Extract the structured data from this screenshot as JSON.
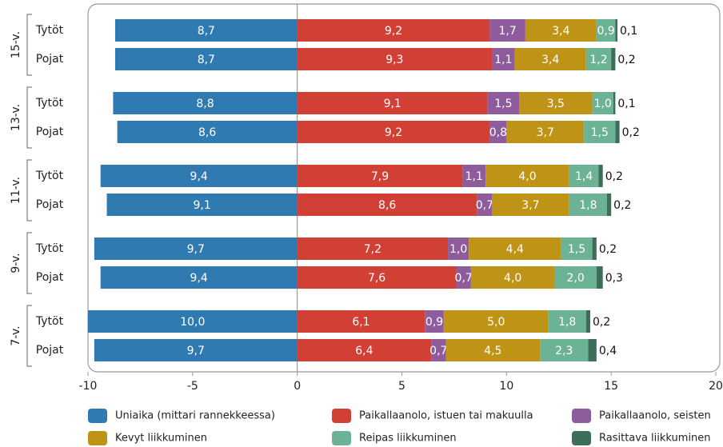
{
  "chart_data": {
    "type": "diverging-stacked-bar",
    "groups": [
      "15-v.",
      "13-v.",
      "11-v.",
      "9-v.",
      "7-v."
    ],
    "categories": [
      "Tytöt",
      "Pojat",
      "Tytöt",
      "Pojat",
      "Tytöt",
      "Pojat",
      "Tytöt",
      "Pojat",
      "Tytöt",
      "Pojat"
    ],
    "series": [
      {
        "name": "Uniaika (mittari rannekkeessa)",
        "color": "#2f7bb1",
        "values": [
          -8.7,
          -8.7,
          -8.8,
          -8.6,
          -9.4,
          -9.1,
          -9.7,
          -9.4,
          -10.0,
          -9.7
        ],
        "value_labels": [
          "8,7",
          "8,7",
          "8,8",
          "8,6",
          "9,4",
          "9,1",
          "9,7",
          "9,4",
          "10,0",
          "9,7"
        ]
      },
      {
        "name": "Paikallaanolo, istuen tai makuulla",
        "color": "#d23f35",
        "values": [
          9.2,
          9.3,
          9.1,
          9.2,
          7.9,
          8.6,
          7.2,
          7.6,
          6.1,
          6.4
        ],
        "value_labels": [
          "9,2",
          "9,3",
          "9,1",
          "9,2",
          "7,9",
          "8,6",
          "7,2",
          "7,6",
          "6,1",
          "6,4"
        ]
      },
      {
        "name": "Paikallaanolo, seisten",
        "color": "#8e5c9c",
        "values": [
          1.7,
          1.1,
          1.5,
          0.8,
          1.1,
          0.7,
          1.0,
          0.7,
          0.9,
          0.7
        ],
        "value_labels": [
          "1,7",
          "1,1",
          "1,5",
          "0,8",
          "1,1",
          "0,7",
          "1,0",
          "0,7",
          "0,9",
          "0,7"
        ]
      },
      {
        "name": "Kevyt liikkuminen",
        "color": "#bf9416",
        "values": [
          3.4,
          3.4,
          3.5,
          3.7,
          4.0,
          3.7,
          4.4,
          4.0,
          5.0,
          4.5
        ],
        "value_labels": [
          "3,4",
          "3,4",
          "3,5",
          "3,7",
          "4,0",
          "3,7",
          "4,4",
          "4,0",
          "5,0",
          "4,5"
        ]
      },
      {
        "name": "Reipas liikkuminen",
        "color": "#6bb394",
        "values": [
          0.9,
          1.2,
          1.0,
          1.5,
          1.4,
          1.8,
          1.5,
          2.0,
          1.8,
          2.3
        ],
        "value_labels": [
          "0,9",
          "1,2",
          "1,0",
          "1,5",
          "1,4",
          "1,8",
          "1,5",
          "2,0",
          "1,8",
          "2,3"
        ]
      },
      {
        "name": "Rasittava liikkuminen",
        "color": "#3c6e5a",
        "values": [
          0.1,
          0.2,
          0.1,
          0.2,
          0.2,
          0.2,
          0.2,
          0.3,
          0.2,
          0.4
        ],
        "value_labels": [
          "0,1",
          "0,2",
          "0,1",
          "0,2",
          "0,2",
          "0,2",
          "0,2",
          "0,3",
          "0,2",
          "0,4"
        ]
      }
    ],
    "xlim": [
      -10,
      20
    ],
    "xticks": [
      -10,
      -5,
      0,
      5,
      10,
      15,
      20
    ]
  }
}
